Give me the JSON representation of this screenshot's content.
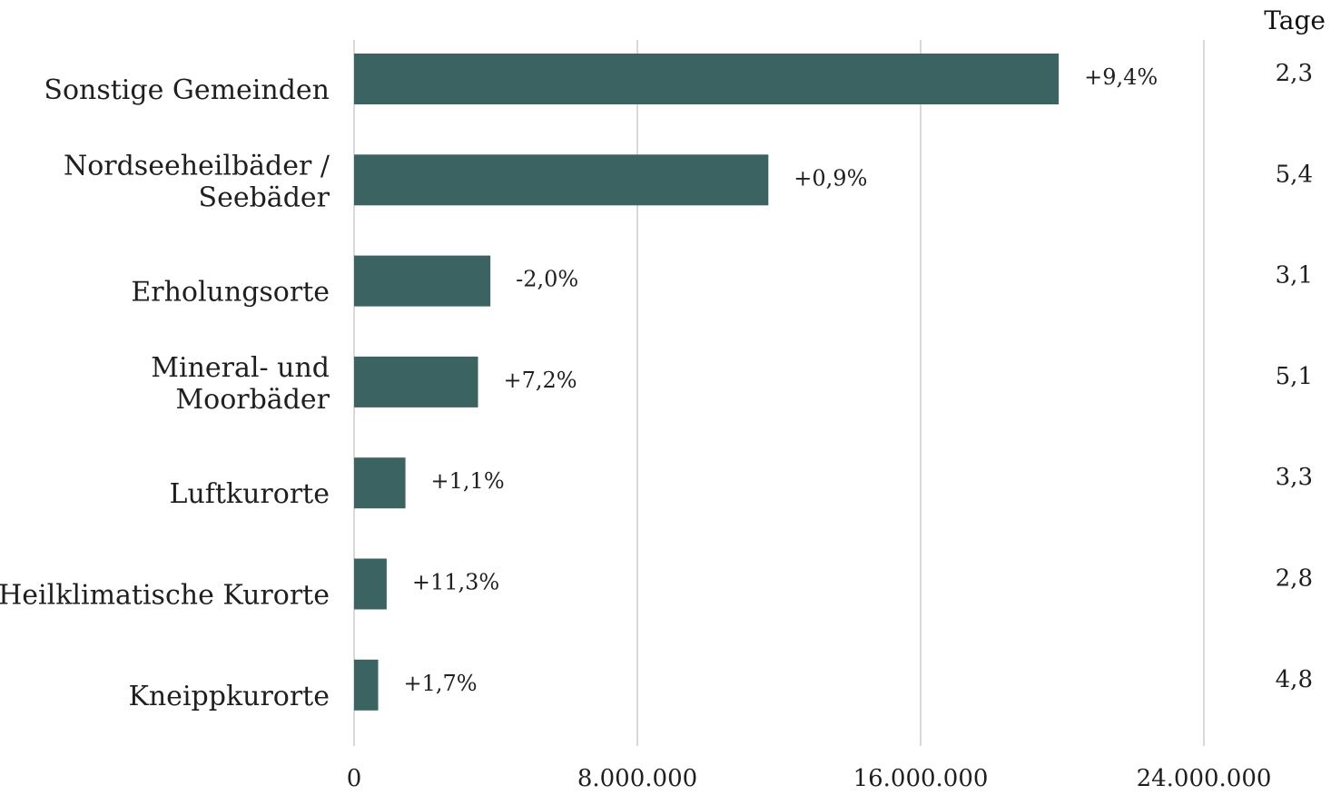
{
  "chart_data": {
    "type": "bar",
    "orientation": "horizontal",
    "categories": [
      [
        "Sonstige Gemeinden"
      ],
      [
        "Nordseeheilbäder /",
        "Seebäder"
      ],
      [
        "Erholungsorte"
      ],
      [
        "Mineral- und",
        "Moorbäder"
      ],
      [
        "Luftkurorte"
      ],
      [
        "Heilklimatische Kurorte"
      ],
      [
        "Kneippkurorte"
      ]
    ],
    "values": [
      19900000,
      11700000,
      3850000,
      3500000,
      1450000,
      920000,
      680000
    ],
    "change_labels": [
      "+9,4%",
      "+0,9%",
      "-2,0%",
      "+7,2%",
      "+1,1%",
      "+11,3%",
      "+1,7%"
    ],
    "tage_header": "Tage",
    "tage_values": [
      "2,3",
      "5,4",
      "3,1",
      "5,1",
      "3,3",
      "2,8",
      "4,8"
    ],
    "x_ticks": [
      0,
      8000000,
      16000000,
      24000000
    ],
    "x_tick_labels": [
      "0",
      "8.000.000",
      "16.000.000",
      "24.000.000"
    ],
    "xlim": [
      0,
      24000000
    ],
    "grid": true,
    "bar_color": "#3a6361",
    "title": "",
    "xlabel": "",
    "ylabel": ""
  }
}
